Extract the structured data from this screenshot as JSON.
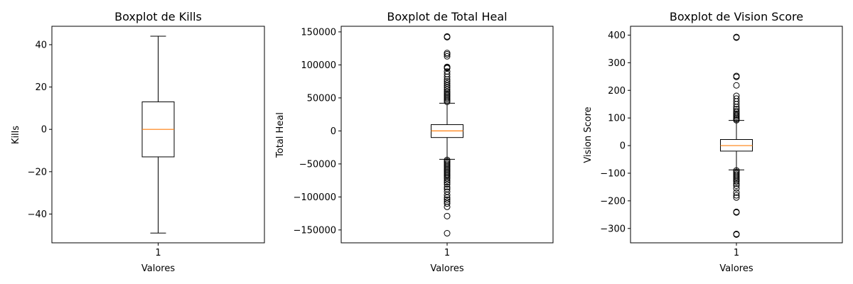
{
  "chart_data": [
    {
      "type": "boxplot",
      "title": "Boxplot de Kills",
      "xlabel": "Valores",
      "ylabel": "Kills",
      "categories": [
        "1"
      ],
      "ylim": [
        -53.6,
        48.7
      ],
      "yticks": [
        40,
        20,
        0,
        -20,
        -40
      ],
      "yticklabels": [
        "40",
        "20",
        "0",
        "−20",
        "−40"
      ],
      "box": {
        "whisker_low": -49,
        "q1": -13,
        "median": 0,
        "q3": 13,
        "whisker_high": 44
      },
      "outliers": []
    },
    {
      "type": "boxplot",
      "title": "Boxplot de Total Heal",
      "xlabel": "Valores",
      "ylabel": "Total Heal",
      "categories": [
        "1"
      ],
      "ylim": [
        -169500,
        158500
      ],
      "yticks": [
        150000,
        100000,
        50000,
        0,
        -50000,
        -100000,
        -150000
      ],
      "yticklabels": [
        "150000",
        "100000",
        "50000",
        "0",
        "−50000",
        "−100000",
        "−150000"
      ],
      "box": {
        "whisker_low": -43000,
        "q1": -10000,
        "median": 0,
        "q3": 9500,
        "whisker_high": 42000
      },
      "outliers": [
        143000,
        142000,
        118000,
        116000,
        113000,
        97000,
        96000,
        95000,
        90000,
        86000,
        82000,
        78000,
        75000,
        72000,
        69000,
        66000,
        63000,
        60000,
        58000,
        56000,
        54000,
        52000,
        50000,
        48000,
        46000,
        44000,
        -44000,
        -46000,
        -48000,
        -50000,
        -52000,
        -54000,
        -56000,
        -58000,
        -60000,
        -62000,
        -64000,
        -66000,
        -68000,
        -70000,
        -72000,
        -75000,
        -78000,
        -81000,
        -85000,
        -88000,
        -92000,
        -97000,
        -101000,
        -104000,
        -107000,
        -110000,
        -115000,
        -129000,
        -155000
      ]
    },
    {
      "type": "boxplot",
      "title": "Boxplot de Vision Score",
      "xlabel": "Valores",
      "ylabel": "Vision Score",
      "categories": [
        "1"
      ],
      "ylim": [
        -352,
        432
      ],
      "yticks": [
        400,
        300,
        200,
        100,
        0,
        -100,
        -200,
        -300
      ],
      "yticklabels": [
        "400",
        "300",
        "200",
        "100",
        "0",
        "−100",
        "−200",
        "−300"
      ],
      "box": {
        "whisker_low": -88,
        "q1": -20,
        "median": 0,
        "q3": 22,
        "whisker_high": 91
      },
      "outliers": [
        393,
        391,
        252,
        249,
        218,
        180,
        170,
        160,
        150,
        140,
        132,
        125,
        120,
        115,
        110,
        105,
        100,
        96,
        92,
        -90,
        -95,
        -100,
        -105,
        -110,
        -115,
        -120,
        -125,
        -130,
        -138,
        -145,
        -155,
        -170,
        -180,
        -188,
        -240,
        -242,
        -320,
        -322
      ]
    }
  ]
}
